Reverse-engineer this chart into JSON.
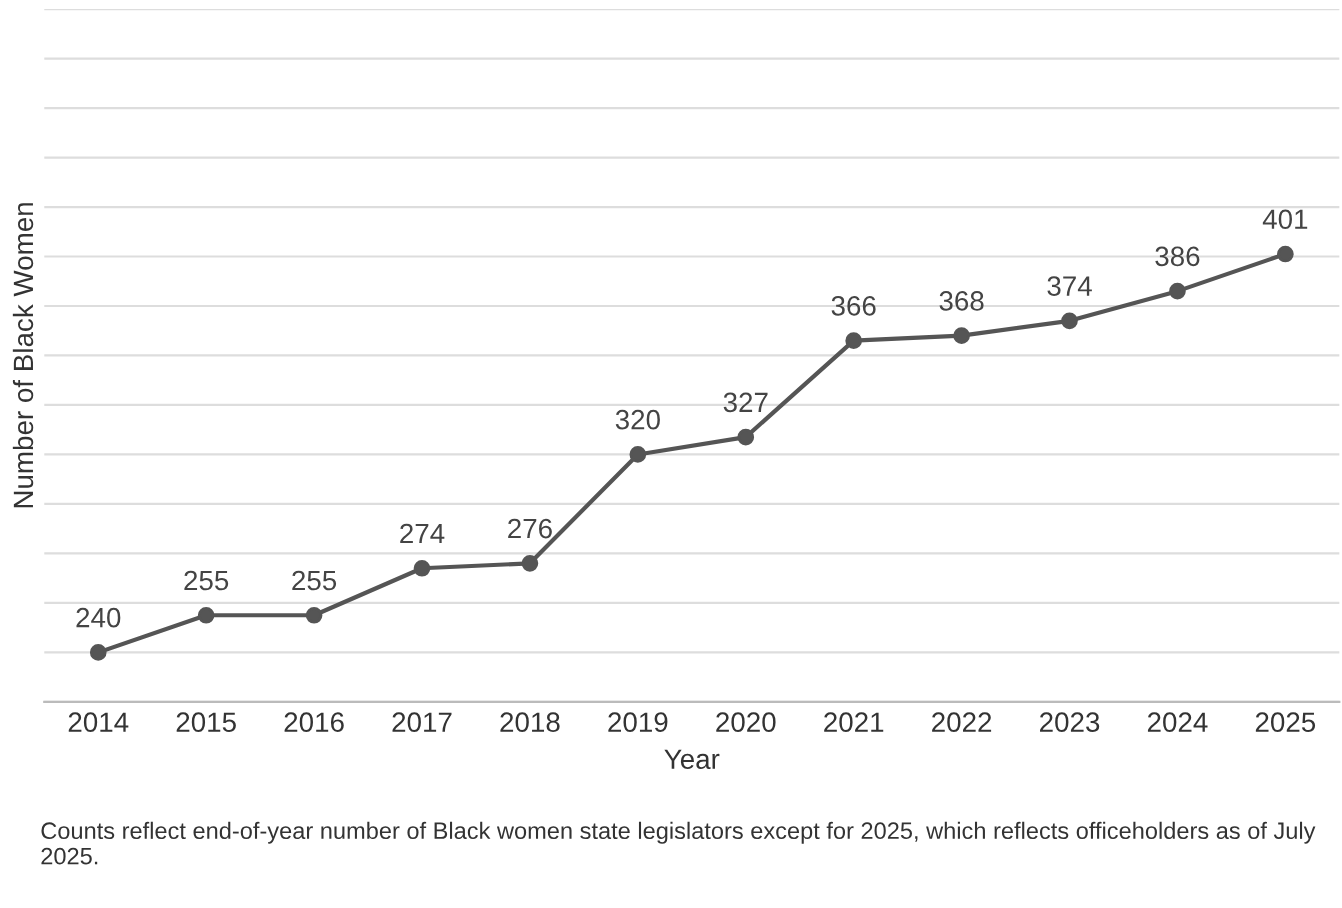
{
  "chart_data": {
    "type": "line",
    "xlabel": "Year",
    "ylabel": "Number of Black Women",
    "categories": [
      "2014",
      "2015",
      "2016",
      "2017",
      "2018",
      "2019",
      "2020",
      "2021",
      "2022",
      "2023",
      "2024",
      "2025"
    ],
    "series": [
      {
        "color": "#555555",
        "values": [
          240,
          255,
          255,
          274,
          276,
          320,
          327,
          366,
          368,
          374,
          386,
          401
        ]
      }
    ],
    "ylim": [
      220,
      500
    ],
    "yticks": [
      {
        "value": 220,
        "label": null
      },
      {
        "value": 240,
        "label": null
      },
      {
        "value": 260,
        "label": null
      },
      {
        "value": 280,
        "label": null
      },
      {
        "value": 300,
        "label": null
      },
      {
        "value": 320,
        "label": null
      },
      {
        "value": 340,
        "label": null
      },
      {
        "value": 360,
        "label": null
      },
      {
        "value": 380,
        "label": null
      },
      {
        "value": 400,
        "label": null
      },
      {
        "value": 420,
        "label": null
      },
      {
        "value": 440,
        "label": null
      },
      {
        "value": 460,
        "label": null
      },
      {
        "value": 480,
        "label": null
      },
      {
        "value": 500,
        "label": null
      }
    ],
    "tick_labels": "x",
    "grid": "y",
    "marker": "circle",
    "line_style": "solid",
    "data_labels": true,
    "annotations": [
      "Counts reflect end-of-year number of Black women state legislators except for 2025, which reflects officeholders as of July 2025."
    ]
  }
}
